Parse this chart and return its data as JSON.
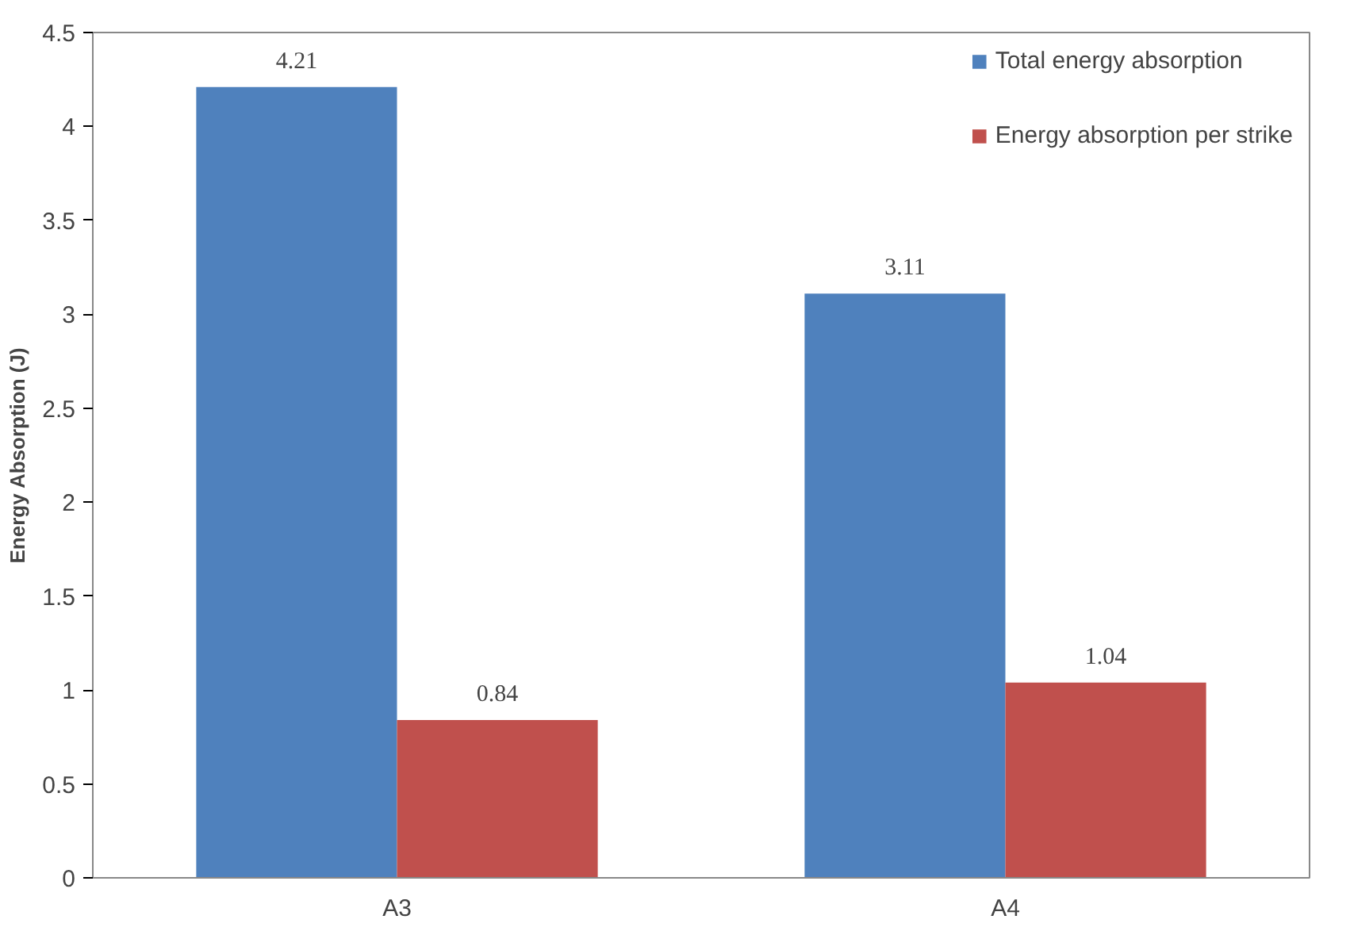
{
  "chart_data": {
    "type": "bar",
    "ylabel": "Energy Absorption (J)",
    "categories": [
      "A3",
      "A4"
    ],
    "series": [
      {
        "name": "Total energy absorption",
        "color": "#4f81bd",
        "values": [
          4.21,
          3.11
        ]
      },
      {
        "name": "Energy absorption per strike",
        "color": "#c0504d",
        "values": [
          0.84,
          1.04
        ]
      }
    ],
    "ylim": [
      0,
      4.5
    ],
    "yticks": [
      0,
      0.5,
      1,
      1.5,
      2,
      2.5,
      3,
      3.5,
      4,
      4.5
    ],
    "grid": false,
    "legend": "top right",
    "data_labels": true
  }
}
